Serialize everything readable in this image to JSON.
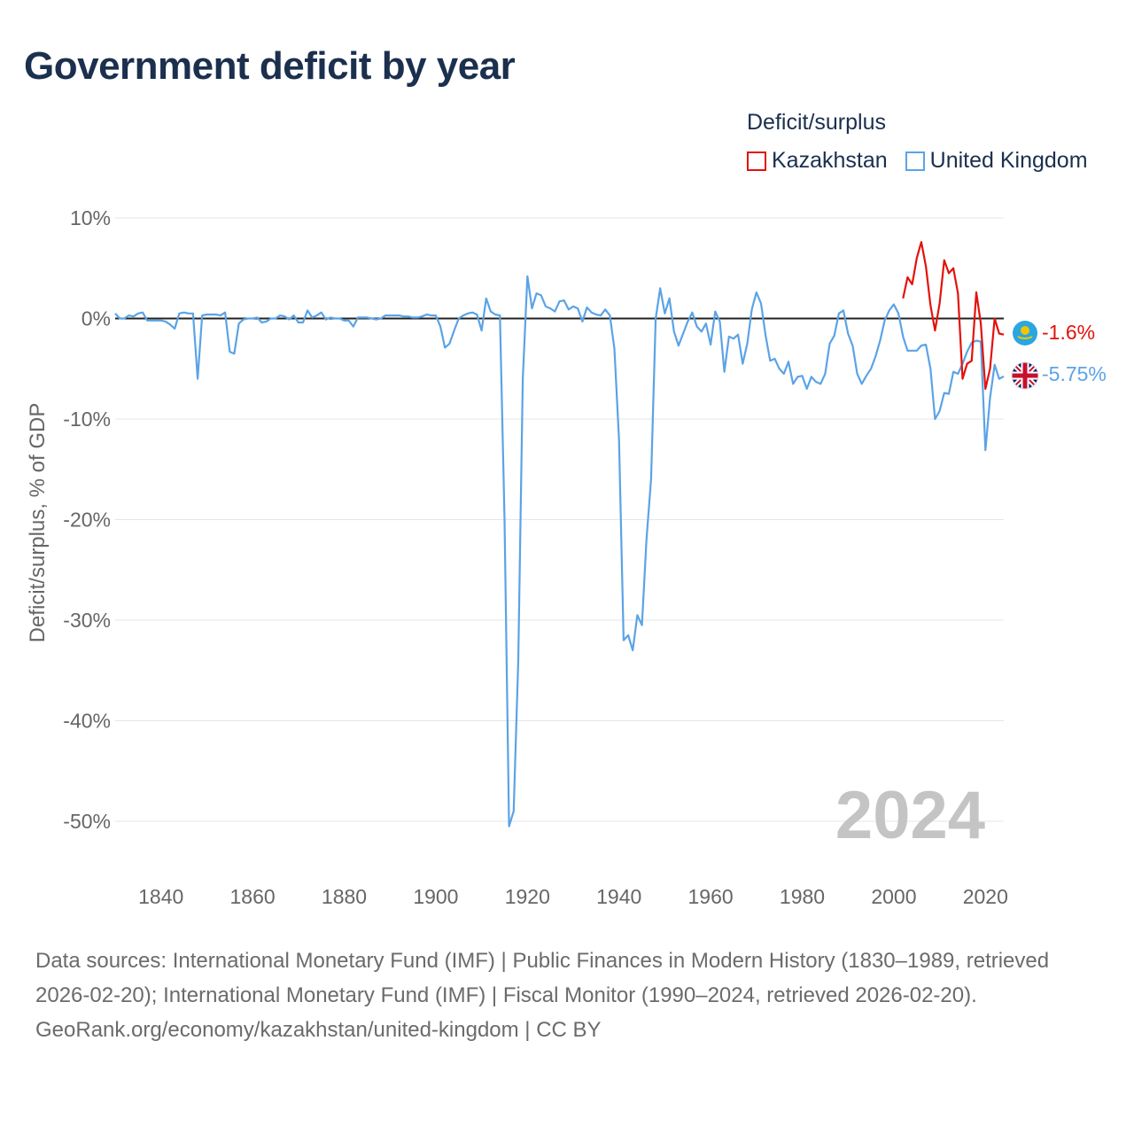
{
  "title": "Government deficit by year",
  "legend": {
    "title": "Deficit/surplus",
    "items": [
      {
        "label": "Kazakhstan",
        "color": "#e3120b"
      },
      {
        "label": "United Kingdom",
        "color": "#5ba3e6"
      }
    ]
  },
  "footer": {
    "sources": "Data sources: International Monetary Fund (IMF) | Public Finances in Modern History (1830–1989, retrieved 2026-02-20); International Monetary Fund (IMF) | Fiscal Monitor (1990–2024, retrieved 2026-02-20).",
    "credit": "GeoRank.org/economy/kazakhstan/united-kingdom | CC BY"
  },
  "chart_data": {
    "type": "line",
    "title": "Government deficit by year",
    "ylabel": "Deficit/surplus, % of GDP",
    "xlabel": "",
    "xlim": [
      1830,
      2024
    ],
    "ylim": [
      -55,
      10
    ],
    "x_ticks": [
      1840,
      1860,
      1880,
      1900,
      1920,
      1940,
      1960,
      1980,
      2000,
      2020
    ],
    "y_ticks": [
      10,
      0,
      -10,
      -20,
      -30,
      -40,
      -50
    ],
    "y_tick_labels": [
      "10%",
      "0%",
      "-10%",
      "-20%",
      "-30%",
      "-40%",
      "-50%"
    ],
    "zero_line": true,
    "year_watermark": "2024",
    "end_labels": [
      {
        "series": "Kazakhstan",
        "text": "-1.6%",
        "icon": "kazakhstan-flag-icon"
      },
      {
        "series": "United Kingdom",
        "text": "-5.75%",
        "icon": "united-kingdom-flag-icon"
      }
    ],
    "series": [
      {
        "name": "United Kingdom",
        "color": "#5ba3e6",
        "points": [
          [
            1830,
            0.5
          ],
          [
            1831,
            0
          ],
          [
            1832,
            0
          ],
          [
            1833,
            0.3
          ],
          [
            1834,
            0.2
          ],
          [
            1835,
            0.5
          ],
          [
            1836,
            0.6
          ],
          [
            1837,
            -0.2
          ],
          [
            1838,
            -0.2
          ],
          [
            1839,
            -0.2
          ],
          [
            1840,
            -0.2
          ],
          [
            1841,
            -0.3
          ],
          [
            1842,
            -0.6
          ],
          [
            1843,
            -1
          ],
          [
            1844,
            0.5
          ],
          [
            1845,
            0.6
          ],
          [
            1846,
            0.5
          ],
          [
            1847,
            0.5
          ],
          [
            1848,
            -6
          ],
          [
            1849,
            0.3
          ],
          [
            1850,
            0.4
          ],
          [
            1851,
            0.4
          ],
          [
            1852,
            0.4
          ],
          [
            1853,
            0.3
          ],
          [
            1854,
            0.6
          ],
          [
            1855,
            -3.3
          ],
          [
            1856,
            -3.5
          ],
          [
            1857,
            -0.5
          ],
          [
            1858,
            -0.1
          ],
          [
            1859,
            0
          ],
          [
            1860,
            0
          ],
          [
            1861,
            0.1
          ],
          [
            1862,
            -0.4
          ],
          [
            1863,
            -0.3
          ],
          [
            1864,
            0
          ],
          [
            1865,
            0
          ],
          [
            1866,
            0.3
          ],
          [
            1867,
            0.2
          ],
          [
            1868,
            -0.1
          ],
          [
            1869,
            0.3
          ],
          [
            1870,
            -0.4
          ],
          [
            1871,
            -0.4
          ],
          [
            1872,
            0.8
          ],
          [
            1873,
            0.1
          ],
          [
            1874,
            0.3
          ],
          [
            1875,
            0.6
          ],
          [
            1876,
            -0.1
          ],
          [
            1877,
            0.1
          ],
          [
            1878,
            0
          ],
          [
            1879,
            0
          ],
          [
            1880,
            -0.2
          ],
          [
            1881,
            -0.2
          ],
          [
            1882,
            -0.8
          ],
          [
            1883,
            0.1
          ],
          [
            1884,
            0.1
          ],
          [
            1885,
            0.1
          ],
          [
            1886,
            0
          ],
          [
            1887,
            -0.1
          ],
          [
            1888,
            0
          ],
          [
            1889,
            0.3
          ],
          [
            1890,
            0.3
          ],
          [
            1891,
            0.3
          ],
          [
            1892,
            0.3
          ],
          [
            1893,
            0.2
          ],
          [
            1894,
            0.2
          ],
          [
            1895,
            0.1
          ],
          [
            1896,
            0.1
          ],
          [
            1897,
            0.2
          ],
          [
            1898,
            0.4
          ],
          [
            1899,
            0.3
          ],
          [
            1900,
            0.3
          ],
          [
            1901,
            -0.8
          ],
          [
            1902,
            -2.9
          ],
          [
            1903,
            -2.5
          ],
          [
            1904,
            -1.2
          ],
          [
            1905,
            0
          ],
          [
            1906,
            0.3
          ],
          [
            1907,
            0.5
          ],
          [
            1908,
            0.6
          ],
          [
            1909,
            0.4
          ],
          [
            1910,
            -1.2
          ],
          [
            1911,
            2
          ],
          [
            1912,
            0.7
          ],
          [
            1913,
            0.4
          ],
          [
            1914,
            0.3
          ],
          [
            1915,
            -20
          ],
          [
            1916,
            -50.5
          ],
          [
            1917,
            -49
          ],
          [
            1918,
            -34
          ],
          [
            1919,
            -6
          ],
          [
            1920,
            4.2
          ],
          [
            1921,
            1
          ],
          [
            1922,
            2.5
          ],
          [
            1923,
            2.3
          ],
          [
            1924,
            1.2
          ],
          [
            1925,
            1
          ],
          [
            1926,
            0.7
          ],
          [
            1927,
            1.7
          ],
          [
            1928,
            1.8
          ],
          [
            1929,
            0.9
          ],
          [
            1930,
            1.2
          ],
          [
            1931,
            1
          ],
          [
            1932,
            -0.3
          ],
          [
            1933,
            1.1
          ],
          [
            1934,
            0.6
          ],
          [
            1935,
            0.4
          ],
          [
            1936,
            0.3
          ],
          [
            1937,
            0.9
          ],
          [
            1938,
            0.3
          ],
          [
            1939,
            -3
          ],
          [
            1940,
            -12
          ],
          [
            1941,
            -32
          ],
          [
            1942,
            -31.5
          ],
          [
            1943,
            -33
          ],
          [
            1944,
            -29.5
          ],
          [
            1945,
            -30.5
          ],
          [
            1946,
            -22
          ],
          [
            1947,
            -16
          ],
          [
            1948,
            0
          ],
          [
            1949,
            3
          ],
          [
            1950,
            0.5
          ],
          [
            1951,
            2
          ],
          [
            1952,
            -1.3
          ],
          [
            1953,
            -2.7
          ],
          [
            1954,
            -1.5
          ],
          [
            1955,
            -0.3
          ],
          [
            1956,
            0.6
          ],
          [
            1957,
            -0.8
          ],
          [
            1958,
            -1.3
          ],
          [
            1959,
            -0.5
          ],
          [
            1960,
            -2.6
          ],
          [
            1961,
            0.7
          ],
          [
            1962,
            -0.3
          ],
          [
            1963,
            -5.3
          ],
          [
            1964,
            -1.8
          ],
          [
            1965,
            -2
          ],
          [
            1966,
            -1.6
          ],
          [
            1967,
            -4.5
          ],
          [
            1968,
            -2.5
          ],
          [
            1969,
            0.9
          ],
          [
            1970,
            2.6
          ],
          [
            1971,
            1.5
          ],
          [
            1972,
            -1.7
          ],
          [
            1973,
            -4.2
          ],
          [
            1974,
            -4
          ],
          [
            1975,
            -5
          ],
          [
            1976,
            -5.5
          ],
          [
            1977,
            -4.3
          ],
          [
            1978,
            -6.5
          ],
          [
            1979,
            -5.8
          ],
          [
            1980,
            -5.7
          ],
          [
            1981,
            -7
          ],
          [
            1982,
            -5.8
          ],
          [
            1983,
            -6.3
          ],
          [
            1984,
            -6.5
          ],
          [
            1985,
            -5.5
          ],
          [
            1986,
            -2.5
          ],
          [
            1987,
            -1.7
          ],
          [
            1988,
            0.5
          ],
          [
            1989,
            0.8
          ],
          [
            1990,
            -1.5
          ],
          [
            1991,
            -2.7
          ],
          [
            1992,
            -5.5
          ],
          [
            1993,
            -6.5
          ],
          [
            1994,
            -5.7
          ],
          [
            1995,
            -5
          ],
          [
            1996,
            -3.8
          ],
          [
            1997,
            -2.2
          ],
          [
            1998,
            -0.2
          ],
          [
            1999,
            0.8
          ],
          [
            2000,
            1.4
          ],
          [
            2001,
            0.5
          ],
          [
            2002,
            -1.8
          ],
          [
            2003,
            -3.2
          ],
          [
            2004,
            -3.2
          ],
          [
            2005,
            -3.2
          ],
          [
            2006,
            -2.7
          ],
          [
            2007,
            -2.6
          ],
          [
            2008,
            -5
          ],
          [
            2009,
            -10
          ],
          [
            2010,
            -9.2
          ],
          [
            2011,
            -7.4
          ],
          [
            2012,
            -7.5
          ],
          [
            2013,
            -5.3
          ],
          [
            2014,
            -5.5
          ],
          [
            2015,
            -4.5
          ],
          [
            2016,
            -3.3
          ],
          [
            2017,
            -2.4
          ],
          [
            2018,
            -2.2
          ],
          [
            2019,
            -2.3
          ],
          [
            2020,
            -13.1
          ],
          [
            2021,
            -7.9
          ],
          [
            2022,
            -4.6
          ],
          [
            2023,
            -6
          ],
          [
            2024,
            -5.75
          ]
        ]
      },
      {
        "name": "Kazakhstan",
        "color": "#e3120b",
        "points": [
          [
            2002,
            2
          ],
          [
            2003,
            4.1
          ],
          [
            2004,
            3.4
          ],
          [
            2005,
            6
          ],
          [
            2006,
            7.6
          ],
          [
            2007,
            5.2
          ],
          [
            2008,
            1.3
          ],
          [
            2009,
            -1.2
          ],
          [
            2010,
            1.5
          ],
          [
            2011,
            5.8
          ],
          [
            2012,
            4.5
          ],
          [
            2013,
            5
          ],
          [
            2014,
            2.5
          ],
          [
            2015,
            -6
          ],
          [
            2016,
            -4.5
          ],
          [
            2017,
            -4.2
          ],
          [
            2018,
            2.6
          ],
          [
            2019,
            -0.5
          ],
          [
            2020,
            -7
          ],
          [
            2021,
            -5
          ],
          [
            2022,
            0
          ],
          [
            2023,
            -1.5
          ],
          [
            2024,
            -1.6
          ]
        ]
      }
    ]
  }
}
